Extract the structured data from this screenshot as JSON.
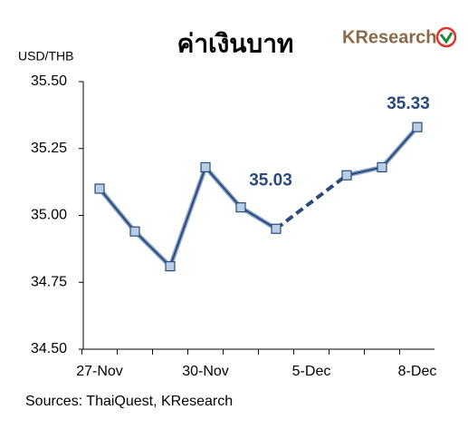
{
  "chart_data": {
    "type": "line",
    "title": "ค่าเงินบาท",
    "logo": "KResearch",
    "y_label": "USD/THB",
    "source": "Sources: ThaiQuest, KResearch",
    "categories": [
      "27-Nov",
      null,
      null,
      "30-Nov",
      null,
      null,
      "5-Dec",
      null,
      null,
      "8-Dec"
    ],
    "series": [
      {
        "name": "USD/THB",
        "color": "#2b4a7c",
        "values": [
          35.1,
          34.94,
          34.81,
          35.18,
          35.03,
          34.95,
          null,
          35.15,
          35.18,
          35.33
        ]
      }
    ],
    "annotations": [
      {
        "text": "35.03",
        "index": 4
      },
      {
        "text": "35.33",
        "index": 9
      }
    ],
    "ylim": [
      34.5,
      35.5
    ],
    "yticks": [
      {
        "value": 34.5,
        "label": "34.50"
      },
      {
        "value": 34.75,
        "label": "34.75"
      },
      {
        "value": 35,
        "label": "35.00"
      },
      {
        "value": 35.25,
        "label": "35.25"
      },
      {
        "value": 35.5,
        "label": "35.50"
      }
    ],
    "marker_fill": "#b9cde5"
  }
}
